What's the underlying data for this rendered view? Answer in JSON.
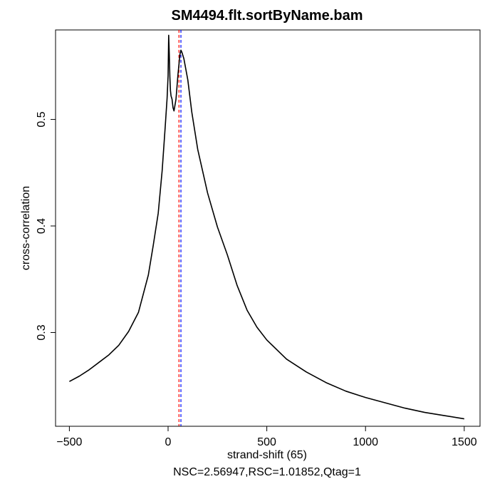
{
  "chart_data": {
    "type": "line",
    "title": "SM4494.flt.sortByName.bam",
    "xlabel": "strand-shift (65)",
    "ylabel": "cross-correlation",
    "subtitle": "NSC=2.56947,RSC=1.01852,Qtag=1",
    "xlim": [
      -570,
      1580
    ],
    "ylim": [
      0.212,
      0.584
    ],
    "x_ticks": [
      -500,
      0,
      500,
      1000,
      1500
    ],
    "x_tick_labels": [
      "−500",
      "0",
      "500",
      "1000",
      "1500"
    ],
    "y_ticks": [
      0.3,
      0.4,
      0.5
    ],
    "y_tick_labels": [
      "0.3",
      "0.4",
      "0.5"
    ],
    "grid": false,
    "legend": "none",
    "line_color": "#000000",
    "vlines": [
      {
        "x": 55,
        "color": "#ff0000",
        "style": "dashed"
      },
      {
        "x": 65,
        "color": "#0000ff",
        "style": "dashed"
      }
    ],
    "series": [
      {
        "x": [
          -500,
          -450,
          -400,
          -350,
          -300,
          -250,
          -200,
          -150,
          -100,
          -75,
          -50,
          -30,
          -15,
          -5,
          0,
          3,
          6,
          9,
          12,
          15,
          20,
          25,
          30,
          40,
          50,
          60,
          65,
          70,
          80,
          100,
          120,
          150,
          200,
          250,
          300,
          350,
          400,
          450,
          500,
          600,
          700,
          800,
          900,
          1000,
          1100,
          1200,
          1300,
          1400,
          1500
        ],
        "y": [
          0.254,
          0.259,
          0.265,
          0.272,
          0.279,
          0.288,
          0.301,
          0.319,
          0.354,
          0.382,
          0.412,
          0.452,
          0.492,
          0.52,
          0.541,
          0.579,
          0.562,
          0.54,
          0.527,
          0.522,
          0.519,
          0.511,
          0.508,
          0.519,
          0.542,
          0.561,
          0.565,
          0.563,
          0.557,
          0.537,
          0.507,
          0.472,
          0.431,
          0.399,
          0.373,
          0.344,
          0.321,
          0.305,
          0.293,
          0.275,
          0.263,
          0.253,
          0.245,
          0.239,
          0.234,
          0.229,
          0.225,
          0.222,
          0.219
        ]
      }
    ]
  }
}
